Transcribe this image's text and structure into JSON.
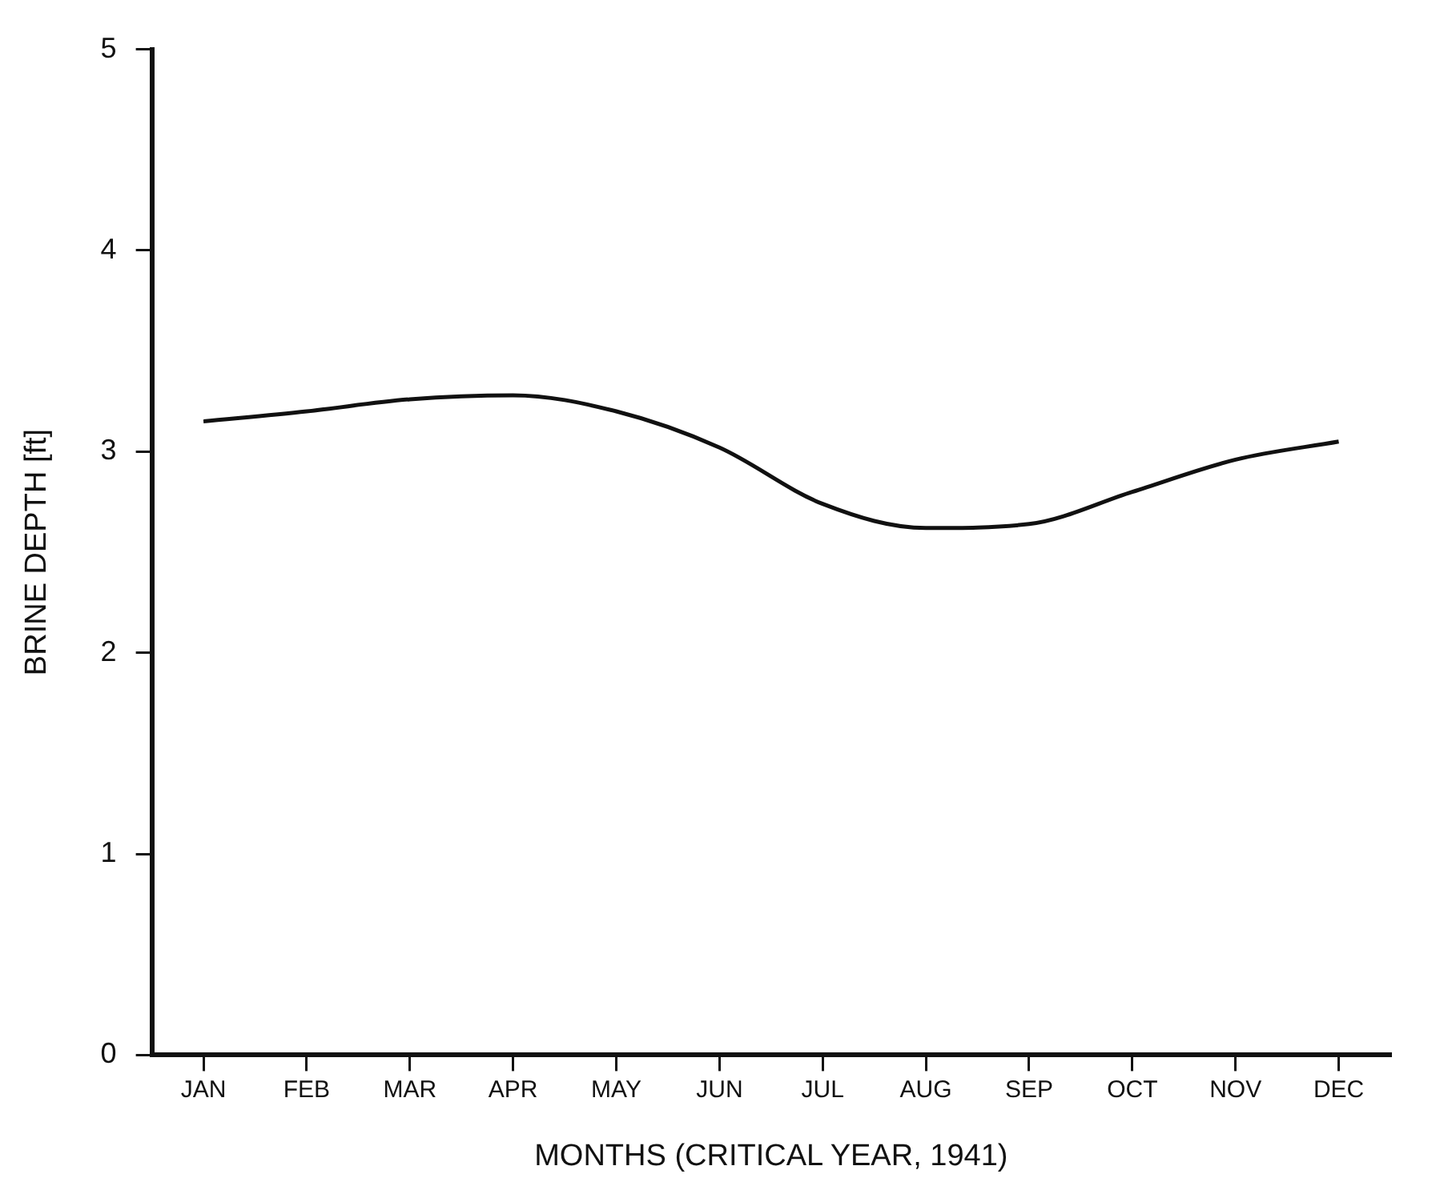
{
  "chart_data": {
    "type": "line",
    "xlabel": "MONTHS (CRITICAL YEAR, 1941)",
    "ylabel": "BRINE DEPTH [ft]",
    "categories": [
      "JAN",
      "FEB",
      "MAR",
      "APR",
      "MAY",
      "JUN",
      "JUL",
      "AUG",
      "SEP",
      "OCT",
      "NOV",
      "DEC"
    ],
    "series": [
      {
        "color": "#111111",
        "values": [
          3.15,
          3.2,
          3.26,
          3.28,
          3.2,
          3.02,
          2.74,
          2.62,
          2.64,
          2.8,
          2.96,
          3.05
        ]
      }
    ],
    "ylim": [
      0,
      5
    ],
    "yticks": [
      0,
      1,
      2,
      3,
      4,
      5
    ],
    "grid": false,
    "legend": false,
    "marker": "none",
    "line_style": "solid"
  }
}
